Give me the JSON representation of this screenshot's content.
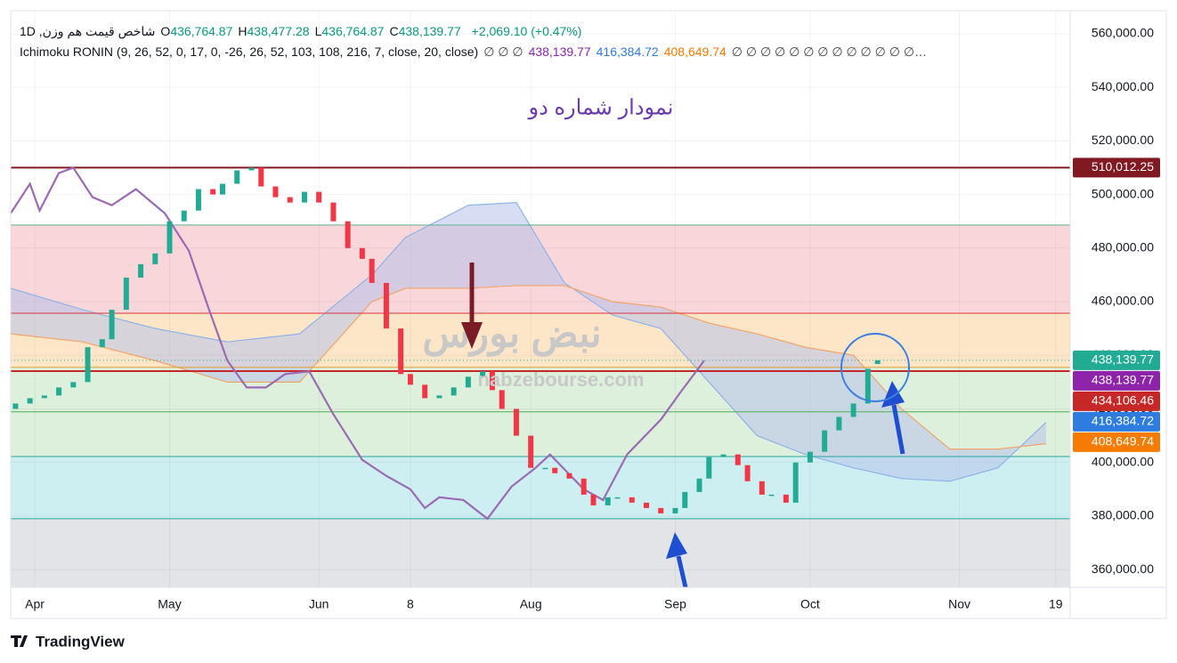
{
  "header": {
    "symbol": "شاخص قیمت هم وزن, 1D",
    "ohlc": [
      {
        "key": "O",
        "value": "436,764.87"
      },
      {
        "key": "H",
        "value": "438,477.28"
      },
      {
        "key": "L",
        "value": "436,764.87"
      },
      {
        "key": "C",
        "value": "438,139.77"
      }
    ],
    "change": "+2,069.10 (+0.47%)",
    "indicator": "Ichimoku RONIN (9, 26, 52, 0, 17, 0, -26, 26, 52, 103, 108, 216, 7, close, 20, close)",
    "indicator_values": [
      {
        "text": "∅ ∅ ∅",
        "color": "#444"
      },
      {
        "text": "438,139.77",
        "color": "#8e24aa"
      },
      {
        "text": "416,384.72",
        "color": "#2f7ce0"
      },
      {
        "text": "408,649.74",
        "color": "#f57c00"
      },
      {
        "text": "∅ ∅ ∅ ∅ ∅ ∅ ∅ ∅ ∅ ∅ ∅ ∅ ∅…",
        "color": "#444"
      }
    ]
  },
  "watermark": {
    "logo_text": "نبض بورس",
    "url": "nabzebourse.com"
  },
  "branding": "TradingView",
  "chart_data": {
    "type": "candlestick",
    "title": "نمودار شماره دو",
    "xlim": [
      0,
      220
    ],
    "xticks": [
      {
        "value": 5,
        "label": "Apr"
      },
      {
        "value": 33,
        "label": "May"
      },
      {
        "value": 64,
        "label": "Jun"
      },
      {
        "value": 83,
        "label": "8"
      },
      {
        "value": 108,
        "label": "Aug"
      },
      {
        "value": 138,
        "label": "Sep"
      },
      {
        "value": 166,
        "label": "Oct"
      },
      {
        "value": 197,
        "label": "Nov"
      },
      {
        "value": 217,
        "label": "19"
      }
    ],
    "ylim": [
      353400,
      568600
    ],
    "yticks": [
      {
        "value": 360000,
        "label": "360,000.00"
      },
      {
        "value": 380000,
        "label": "380,000.00"
      },
      {
        "value": 400000,
        "label": "400,000.00"
      },
      {
        "value": 420000,
        "label": "420,000.00"
      },
      {
        "value": 440000,
        "label": "440,000.00"
      },
      {
        "value": 460000,
        "label": "460,000.00"
      },
      {
        "value": 480000,
        "label": "480,000.00"
      },
      {
        "value": 500000,
        "label": "500,000.00"
      },
      {
        "value": 520000,
        "label": "520,000.00"
      },
      {
        "value": 540000,
        "label": "540,000.00"
      },
      {
        "value": 560000,
        "label": "560,000.00"
      }
    ],
    "x": [
      1,
      4,
      7,
      10,
      13,
      16,
      19,
      21,
      24,
      27,
      30,
      33,
      36,
      39,
      42,
      44,
      47,
      50,
      52,
      55,
      58,
      61,
      64,
      67,
      70,
      73,
      75,
      78,
      81,
      83,
      86,
      89,
      92,
      95,
      98,
      100,
      102,
      105,
      108,
      111,
      113,
      116,
      119,
      121,
      124,
      126,
      129,
      132,
      135,
      138,
      140,
      143,
      145,
      148,
      151,
      153,
      156,
      158,
      161,
      163,
      166,
      169,
      172,
      175,
      178,
      180
    ],
    "open": [
      420000,
      422000,
      424000,
      425000,
      428000,
      430000,
      443000,
      446000,
      457000,
      469000,
      474000,
      478000,
      490000,
      494000,
      502000,
      500000,
      504000,
      509000,
      510000,
      503000,
      499000,
      497000,
      501000,
      497000,
      490000,
      480000,
      476000,
      467000,
      450000,
      433000,
      429000,
      424000,
      425000,
      428000,
      432000,
      434000,
      427000,
      420000,
      410000,
      398000,
      398000,
      396000,
      394000,
      388000,
      384000,
      387000,
      387000,
      385000,
      383000,
      381000,
      383000,
      389000,
      394000,
      402000,
      403000,
      399000,
      393000,
      388000,
      388000,
      385000,
      400000,
      404000,
      412000,
      417000,
      422000,
      436764.87
    ],
    "close": [
      422000,
      424000,
      425000,
      428000,
      430000,
      443000,
      446000,
      457000,
      469000,
      474000,
      478000,
      490000,
      494000,
      502000,
      500000,
      504000,
      509000,
      510000,
      503000,
      499000,
      497000,
      501000,
      497000,
      490000,
      480000,
      476000,
      467000,
      450000,
      433000,
      429000,
      424000,
      425000,
      428000,
      432000,
      434000,
      427000,
      420000,
      410000,
      398000,
      398000,
      396000,
      394000,
      388000,
      384000,
      387000,
      387000,
      385000,
      383000,
      381000,
      383000,
      389000,
      394000,
      402000,
      403000,
      399000,
      393000,
      388000,
      388000,
      385000,
      400000,
      404000,
      412000,
      417000,
      422000,
      435000,
      438139.77
    ],
    "up_color": "#22ab94",
    "down_color": "#f23645",
    "cloud": {
      "x": [
        0,
        15,
        30,
        45,
        60,
        75,
        82,
        95,
        105,
        115,
        125,
        135,
        145,
        155,
        165,
        175,
        185,
        195,
        205,
        215
      ],
      "span_a": [
        465000,
        457000,
        450000,
        445000,
        448000,
        470000,
        484000,
        496000,
        497000,
        467000,
        455000,
        450000,
        430000,
        410000,
        403000,
        398000,
        394000,
        393000,
        398000,
        415000
      ],
      "span_b": [
        448000,
        445000,
        438000,
        430000,
        430000,
        460000,
        465000,
        465000,
        466000,
        466000,
        460000,
        458000,
        452000,
        448000,
        443000,
        440000,
        420000,
        405000,
        405000,
        407000
      ],
      "fill": "#b6c3ea",
      "span_a_color": "#8fb3e8",
      "span_b_color": "#f4a46a"
    },
    "lagging": {
      "x": [
        0,
        4,
        6,
        10,
        13,
        17,
        21,
        26,
        32,
        37,
        41,
        45,
        49,
        53,
        57,
        62,
        67,
        73,
        78,
        83,
        86,
        89,
        94,
        99,
        104,
        109,
        112,
        119,
        123,
        128,
        135,
        139,
        144
      ],
      "values": [
        493000,
        504000,
        494000,
        508000,
        510000,
        499000,
        496000,
        502000,
        493000,
        479000,
        458000,
        438000,
        428000,
        428000,
        433000,
        434000,
        418000,
        401000,
        395000,
        390000,
        383000,
        387000,
        386000,
        379000,
        391000,
        398000,
        403000,
        390000,
        386000,
        403000,
        416000,
        426000,
        438000
      ],
      "color": "#9c6ab5"
    },
    "zones": [
      {
        "from": 488600,
        "to": 455700,
        "color": "#f9d6da"
      },
      {
        "from": 455700,
        "to": 435500,
        "color": "#fde6c8"
      },
      {
        "from": 435500,
        "to": 402200,
        "color": "#ddf0dc"
      },
      {
        "from": 402200,
        "to": 379000,
        "color": "#cdeff1"
      },
      {
        "from": 379000,
        "to": 353400,
        "color": "#e3e4e7"
      }
    ],
    "levels": [
      {
        "value": 510012.25,
        "color": "#801922",
        "width": 2
      },
      {
        "value": 434106.46,
        "color": "#c62828",
        "width": 2
      },
      {
        "value": 488600,
        "color": "#5fb08f",
        "width": 1
      },
      {
        "value": 455700,
        "color": "#d93636",
        "width": 1
      },
      {
        "value": 435500,
        "color": "#e0a030",
        "width": 1
      },
      {
        "value": 418900,
        "color": "#4caf50",
        "width": 1
      },
      {
        "value": 402200,
        "color": "#26a69a",
        "width": 1
      },
      {
        "value": 379000,
        "color": "#26a69a",
        "width": 1
      }
    ],
    "last_price": 438139.77,
    "price_labels": [
      {
        "value": 510012.25,
        "label": "510,012.25",
        "color": "#801922"
      },
      {
        "value": 438139.77,
        "label": "438,139.77",
        "color": "#22ab94"
      },
      {
        "value": 438139.77,
        "label": "438,139.77",
        "color": "#8e24aa"
      },
      {
        "value": 434106.46,
        "label": "434,106.46",
        "color": "#c62828"
      },
      {
        "value": 416384.72,
        "label": "416,384.72",
        "color": "#2f7ce0"
      },
      {
        "value": 408649.74,
        "label": "408,649.74",
        "color": "#f57c00"
      }
    ]
  }
}
